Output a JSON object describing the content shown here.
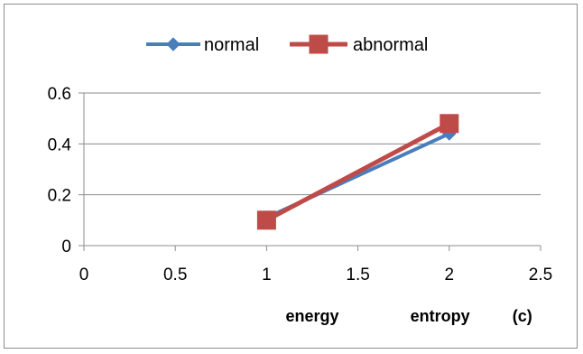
{
  "chart_data": {
    "type": "line",
    "title": "",
    "xlabel": "",
    "ylabel": "",
    "xlim": [
      0,
      2.5
    ],
    "ylim": [
      0,
      0.6
    ],
    "x_ticks": [
      "0",
      "0.5",
      "1",
      "1.5",
      "2",
      "2.5"
    ],
    "y_ticks": [
      "0",
      "0.2",
      "0.4",
      "0.6"
    ],
    "grid": "horizontal",
    "legend_position": "top-center",
    "series": [
      {
        "name": "normal",
        "color": "#4a7ebb",
        "marker": "diamond",
        "points": [
          {
            "x": 1,
            "y": 0.11
          },
          {
            "x": 2,
            "y": 0.44
          }
        ]
      },
      {
        "name": "abnormal",
        "color": "#be4b48",
        "marker": "square",
        "points": [
          {
            "x": 1,
            "y": 0.1
          },
          {
            "x": 2,
            "y": 0.48
          }
        ]
      }
    ],
    "annotations": [
      {
        "text": "energy",
        "x": 1.25
      },
      {
        "text": "entropy",
        "x": 1.95
      },
      {
        "text": "(c)",
        "x": 2.4
      }
    ]
  }
}
